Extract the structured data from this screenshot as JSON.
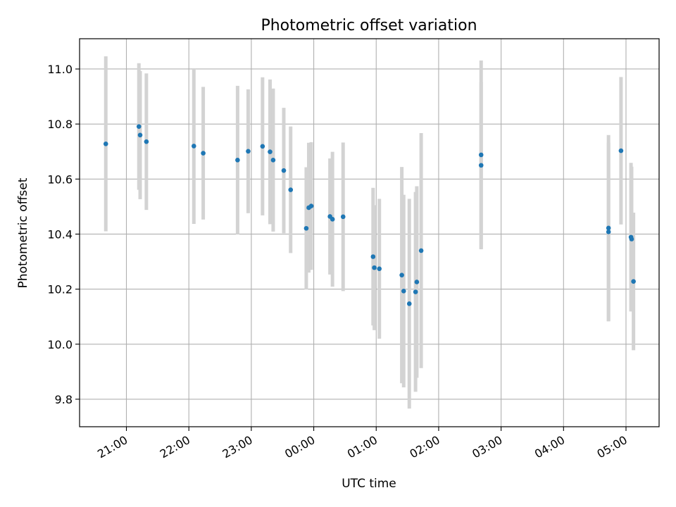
{
  "chart_data": {
    "type": "scatter",
    "title": "Photometric offset variation",
    "xlabel": "UTC time",
    "ylabel": "Photometric offset",
    "x_unit": "UTC time (hours since 00:00 of the second night, negative = previous evening)",
    "xlim": [
      -3.75,
      5.53
    ],
    "ylim": [
      9.7,
      11.11
    ],
    "grid": true,
    "x_ticks": [
      {
        "value": -3,
        "label": "21:00"
      },
      {
        "value": -2,
        "label": "22:00"
      },
      {
        "value": -1,
        "label": "23:00"
      },
      {
        "value": 0,
        "label": "00:00"
      },
      {
        "value": 1,
        "label": "01:00"
      },
      {
        "value": 2,
        "label": "02:00"
      },
      {
        "value": 3,
        "label": "03:00"
      },
      {
        "value": 4,
        "label": "04:00"
      },
      {
        "value": 5,
        "label": "05:00"
      }
    ],
    "y_ticks": [
      {
        "value": 9.8,
        "label": "9.8"
      },
      {
        "value": 10.0,
        "label": "10.0"
      },
      {
        "value": 10.2,
        "label": "10.2"
      },
      {
        "value": 10.4,
        "label": "10.4"
      },
      {
        "value": 10.6,
        "label": "10.6"
      },
      {
        "value": 10.8,
        "label": "10.8"
      },
      {
        "value": 11.0,
        "label": "11.0"
      }
    ],
    "colors": {
      "point": "#1f77b4",
      "errorbar": "#d3d3d3",
      "grid": "#b0b0b0"
    },
    "series": [
      {
        "points": [
          {
            "x": -3.33,
            "y": 10.728,
            "err": 0.318
          },
          {
            "x": -2.8,
            "y": 10.791,
            "err": 0.23
          },
          {
            "x": -2.78,
            "y": 10.76,
            "err": 0.233
          },
          {
            "x": -2.68,
            "y": 10.736,
            "err": 0.248
          },
          {
            "x": -1.92,
            "y": 10.72,
            "err": 0.283
          },
          {
            "x": -1.77,
            "y": 10.694,
            "err": 0.241
          },
          {
            "x": -1.22,
            "y": 10.669,
            "err": 0.27
          },
          {
            "x": -1.05,
            "y": 10.701,
            "err": 0.225
          },
          {
            "x": -0.82,
            "y": 10.719,
            "err": 0.251
          },
          {
            "x": -0.7,
            "y": 10.699,
            "err": 0.263
          },
          {
            "x": -0.65,
            "y": 10.669,
            "err": 0.26
          },
          {
            "x": -0.48,
            "y": 10.631,
            "err": 0.228
          },
          {
            "x": -0.37,
            "y": 10.561,
            "err": 0.23
          },
          {
            "x": -0.12,
            "y": 10.421,
            "err": 0.222
          },
          {
            "x": -0.08,
            "y": 10.496,
            "err": 0.236
          },
          {
            "x": -0.04,
            "y": 10.502,
            "err": 0.232
          },
          {
            "x": 0.26,
            "y": 10.464,
            "err": 0.211
          },
          {
            "x": 0.3,
            "y": 10.454,
            "err": 0.245
          },
          {
            "x": 0.47,
            "y": 10.463,
            "err": 0.27
          },
          {
            "x": 0.95,
            "y": 10.318,
            "err": 0.25
          },
          {
            "x": 0.97,
            "y": 10.278,
            "err": 0.227
          },
          {
            "x": 1.05,
            "y": 10.274,
            "err": 0.254
          },
          {
            "x": 1.41,
            "y": 10.251,
            "err": 0.393
          },
          {
            "x": 1.44,
            "y": 10.193,
            "err": 0.35
          },
          {
            "x": 1.53,
            "y": 10.147,
            "err": 0.381
          },
          {
            "x": 1.63,
            "y": 10.19,
            "err": 0.363
          },
          {
            "x": 1.65,
            "y": 10.226,
            "err": 0.348
          },
          {
            "x": 1.72,
            "y": 10.34,
            "err": 0.427
          },
          {
            "x": 2.68,
            "y": 10.688,
            "err": 0.343
          },
          {
            "x": 2.68,
            "y": 10.65,
            "err": 0.303
          },
          {
            "x": 4.72,
            "y": 10.422,
            "err": 0.338
          },
          {
            "x": 4.72,
            "y": 10.408,
            "err": 0.325
          },
          {
            "x": 4.92,
            "y": 10.703,
            "err": 0.268
          },
          {
            "x": 5.08,
            "y": 10.389,
            "err": 0.27
          },
          {
            "x": 5.09,
            "y": 10.382,
            "err": 0.263
          },
          {
            "x": 5.12,
            "y": 10.228,
            "err": 0.25
          }
        ]
      }
    ]
  }
}
